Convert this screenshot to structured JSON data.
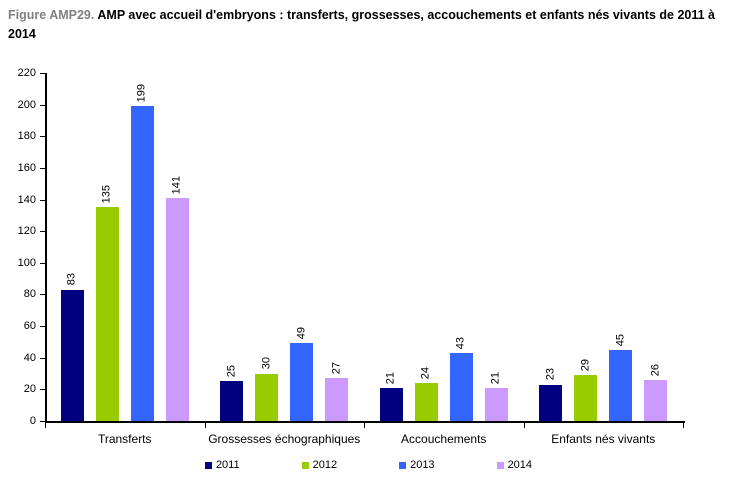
{
  "title": {
    "prefix": "Figure AMP29.",
    "text": "AMP avec accueil d'embryons : transferts, grossesses, accouchements et enfants nés vivants de 2011 à 2014"
  },
  "chart_data": {
    "type": "bar",
    "title": "AMP avec accueil d'embryons : transferts, grossesses, accouchements et enfants nés vivants de 2011 à 2014",
    "categories": [
      "Transferts",
      "Grossesses échographiques",
      "Accouchements",
      "Enfants nés vivants"
    ],
    "series": [
      {
        "name": "2011",
        "color": "#000080",
        "values": [
          83,
          25,
          21,
          23
        ]
      },
      {
        "name": "2012",
        "color": "#99CC00",
        "values": [
          135,
          30,
          24,
          29
        ]
      },
      {
        "name": "2013",
        "color": "#3366FF",
        "values": [
          199,
          49,
          43,
          45
        ]
      },
      {
        "name": "2014",
        "color": "#CC99FF",
        "values": [
          141,
          27,
          21,
          26
        ]
      }
    ],
    "xlabel": "",
    "ylabel": "",
    "ylim": [
      0,
      220
    ],
    "ytick_step": 20,
    "yticks": [
      0,
      20,
      40,
      60,
      80,
      100,
      120,
      140,
      160,
      180,
      200,
      220
    ],
    "grid": false,
    "legend_position": "bottom",
    "value_labels": "rotated-above-bars"
  },
  "colors": {
    "title_prefix": "#808080",
    "title_text": "#000000",
    "axis": "#000000"
  }
}
